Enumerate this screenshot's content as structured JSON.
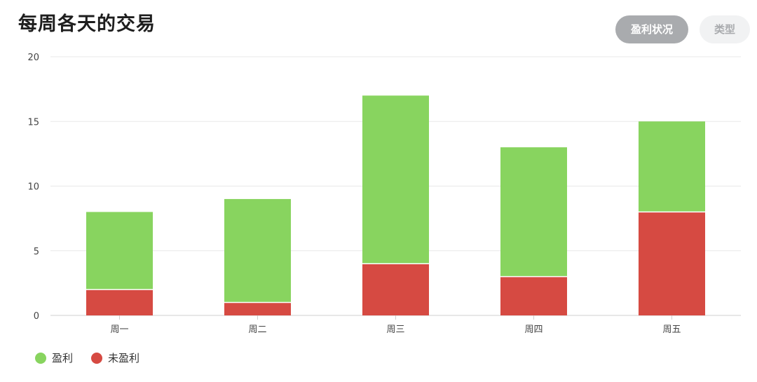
{
  "header": {
    "title": "每周各天的交易",
    "toggle_profit_label": "盈利状况",
    "toggle_type_label": "类型"
  },
  "chart_data": {
    "type": "bar",
    "stacked": true,
    "categories": [
      "周一",
      "周二",
      "周三",
      "周四",
      "周五"
    ],
    "series": [
      {
        "name": "未盈利",
        "values": [
          2,
          1,
          4,
          3,
          8
        ],
        "color": "#d64a42"
      },
      {
        "name": "盈利",
        "values": [
          6,
          8,
          13,
          10,
          7
        ],
        "color": "#88d45f"
      }
    ],
    "ylim": [
      0,
      20
    ],
    "yticks": [
      0,
      5,
      10,
      15,
      20
    ],
    "grid": true,
    "legend_position": "bottom-left"
  },
  "legend": [
    {
      "label": "盈利",
      "color": "#88d45f"
    },
    {
      "label": "未盈利",
      "color": "#d64a42"
    }
  ]
}
